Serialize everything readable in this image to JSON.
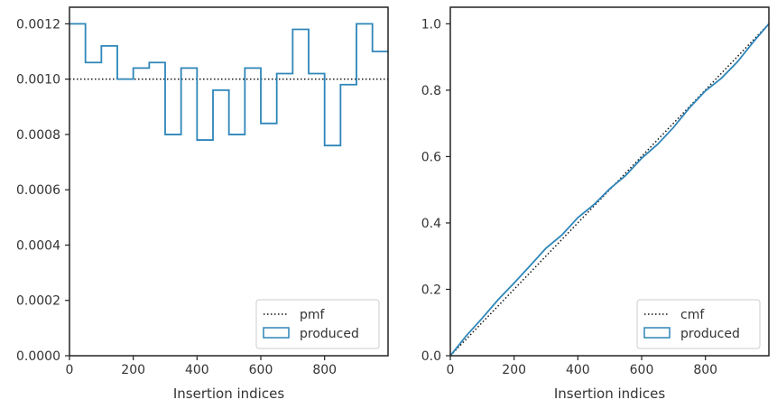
{
  "colors": {
    "produced": "#2e86b9",
    "reference": "#111111",
    "axes": "#222222",
    "background": "#ffffff"
  },
  "chart_data": [
    {
      "type": "line",
      "subtype": "step-histogram",
      "xlabel": "Insertion indices",
      "ylabel": "",
      "xlim": [
        0,
        999
      ],
      "ylim": [
        0,
        0.00126
      ],
      "xticks": [
        0,
        200,
        400,
        600,
        800
      ],
      "xtick_labels": [
        "0",
        "200",
        "400",
        "600",
        "800"
      ],
      "yticks": [
        0,
        0.0002,
        0.0004,
        0.0006,
        0.0008,
        0.001,
        0.0012
      ],
      "ytick_labels": [
        "0.0000",
        "0.0002",
        "0.0004",
        "0.0006",
        "0.0008",
        "0.0010",
        "0.0012"
      ],
      "legend_position": "lower-right",
      "series": [
        {
          "name": "pmf",
          "style": "dotted",
          "x": [
            0,
            999
          ],
          "values": [
            0.001,
            0.001
          ]
        },
        {
          "name": "produced",
          "style": "step",
          "bin_edges": [
            0,
            50,
            100,
            150,
            200,
            250,
            300,
            350,
            400,
            450,
            500,
            550,
            600,
            650,
            700,
            750,
            800,
            850,
            900,
            950,
            999
          ],
          "values": [
            0.0012,
            0.00106,
            0.00112,
            0.001,
            0.00104,
            0.00106,
            0.0008,
            0.00104,
            0.00078,
            0.00096,
            0.0008,
            0.00104,
            0.00084,
            0.00102,
            0.00118,
            0.00102,
            0.00076,
            0.00098,
            0.0012,
            0.0011
          ]
        }
      ]
    },
    {
      "type": "line",
      "subtype": "cumulative",
      "xlabel": "Insertion indices",
      "ylabel": "",
      "xlim": [
        0,
        999
      ],
      "ylim": [
        0,
        1.05
      ],
      "xticks": [
        0,
        200,
        400,
        600,
        800
      ],
      "xtick_labels": [
        "0",
        "200",
        "400",
        "600",
        "800"
      ],
      "yticks": [
        0,
        0.2,
        0.4,
        0.6,
        0.8,
        1.0
      ],
      "ytick_labels": [
        "0.0",
        "0.2",
        "0.4",
        "0.6",
        "0.8",
        "1.0"
      ],
      "legend_position": "lower-right",
      "series": [
        {
          "name": "cmf",
          "style": "dotted",
          "x": [
            0,
            999
          ],
          "values": [
            0.0,
            1.0
          ]
        },
        {
          "name": "produced",
          "style": "line",
          "x": [
            0,
            50,
            100,
            150,
            200,
            250,
            300,
            350,
            400,
            450,
            500,
            550,
            600,
            650,
            700,
            750,
            800,
            850,
            900,
            950,
            999
          ],
          "values": [
            0.0,
            0.06,
            0.113,
            0.169,
            0.219,
            0.271,
            0.324,
            0.364,
            0.416,
            0.455,
            0.503,
            0.543,
            0.595,
            0.637,
            0.688,
            0.747,
            0.798,
            0.836,
            0.885,
            0.945,
            1.0
          ]
        }
      ]
    }
  ]
}
